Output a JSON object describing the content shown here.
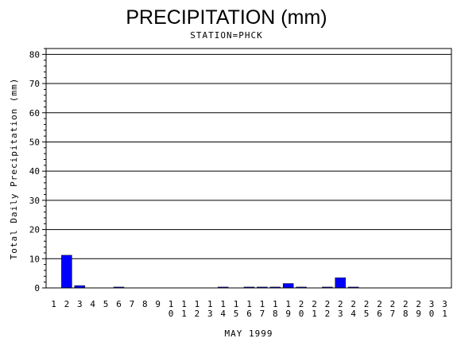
{
  "chart_data": {
    "type": "bar",
    "title": "PRECIPITATION (mm)",
    "subtitle": "STATION=PHCK",
    "xlabel": "MAY 1999",
    "ylabel": "Total Daily Precipitation (mm)",
    "ylim": [
      0,
      82
    ],
    "yticks": [
      0,
      10,
      20,
      30,
      40,
      50,
      60,
      70,
      80
    ],
    "grid": true,
    "categories": [
      "1",
      "2",
      "3",
      "4",
      "5",
      "6",
      "7",
      "8",
      "9",
      "10",
      "11",
      "12",
      "13",
      "14",
      "15",
      "16",
      "17",
      "18",
      "19",
      "20",
      "21",
      "22",
      "23",
      "24",
      "25",
      "26",
      "27",
      "28",
      "29",
      "30",
      "31"
    ],
    "values": [
      0,
      11.2,
      0.8,
      0,
      0,
      0.3,
      0,
      0,
      0,
      0,
      0,
      0,
      0,
      0.3,
      0,
      0.3,
      0.3,
      0.3,
      1.5,
      0.3,
      0,
      0.3,
      3.5,
      0.3,
      0,
      0,
      0,
      0,
      0,
      0,
      0
    ],
    "bar_color": "#0000ff"
  }
}
